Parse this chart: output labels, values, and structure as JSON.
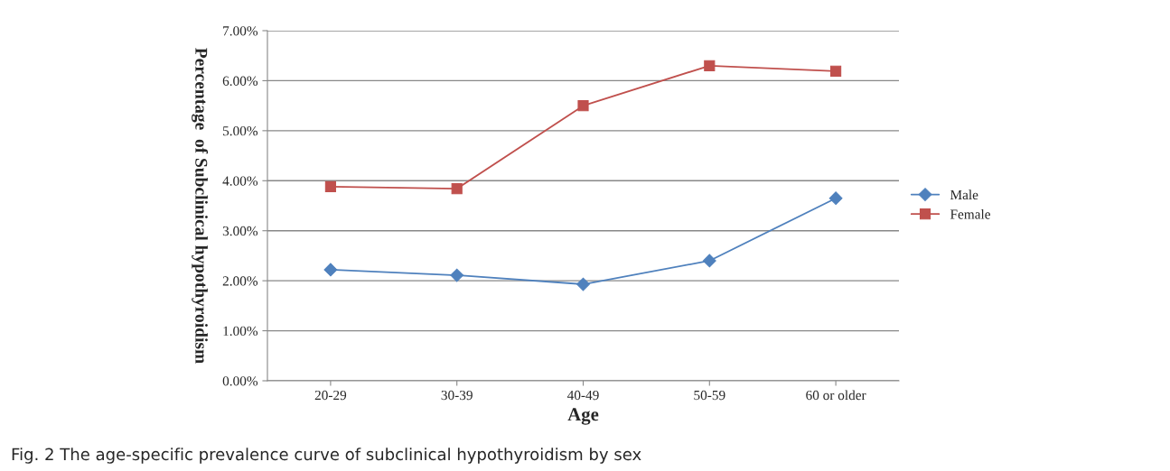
{
  "chart_data": {
    "type": "line",
    "xlabel": "Age",
    "ylabel": "Percentage  of Subclinical hypothyroidism",
    "categories": [
      "20-29",
      "30-39",
      "40-49",
      "50-59",
      "60 or older"
    ],
    "series": [
      {
        "name": "Male",
        "color": "#4f81bd",
        "marker": "diamond",
        "values": [
          2.22,
          2.11,
          1.93,
          2.4,
          3.65
        ]
      },
      {
        "name": "Female",
        "color": "#c0504d",
        "marker": "square",
        "values": [
          3.88,
          3.84,
          5.5,
          6.3,
          6.19
        ]
      }
    ],
    "ylim": [
      0,
      7
    ],
    "yticks": [
      {
        "value": 0,
        "label": "0.00%"
      },
      {
        "value": 1,
        "label": "1.00%"
      },
      {
        "value": 2,
        "label": "2.00%"
      },
      {
        "value": 3,
        "label": "3.00%"
      },
      {
        "value": 4,
        "label": "4.00%"
      },
      {
        "value": 5,
        "label": "5.00%"
      },
      {
        "value": 6,
        "label": "6.00%"
      },
      {
        "value": 7,
        "label": "7.00%"
      }
    ],
    "grid": "y",
    "legend": "right",
    "annotations": [
      "Fig. 2 The age-specific prevalence curve of subclinical hypothyroidism by sex"
    ]
  }
}
